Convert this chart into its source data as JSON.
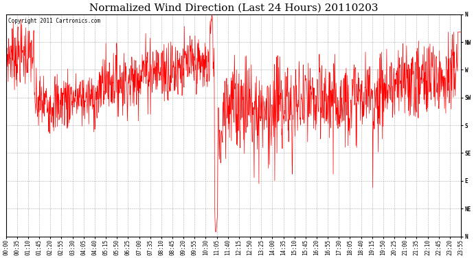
{
  "title": "Normalized Wind Direction (Last 24 Hours) 20110203",
  "copyright_text": "Copyright 2011 Cartronics.com",
  "line_color": "#ff0000",
  "background_color": "#ffffff",
  "grid_color": "#888888",
  "ytick_labels": [
    "N",
    "NW",
    "W",
    "SW",
    "S",
    "SE",
    "E",
    "NE",
    "N"
  ],
  "ytick_values": [
    1.0,
    0.875,
    0.75,
    0.625,
    0.5,
    0.375,
    0.25,
    0.125,
    0.0
  ],
  "ylim": [
    0.0,
    1.0
  ],
  "total_minutes": 1435,
  "xtick_step_minutes": 35,
  "title_fontsize": 11,
  "tick_fontsize": 5.5
}
